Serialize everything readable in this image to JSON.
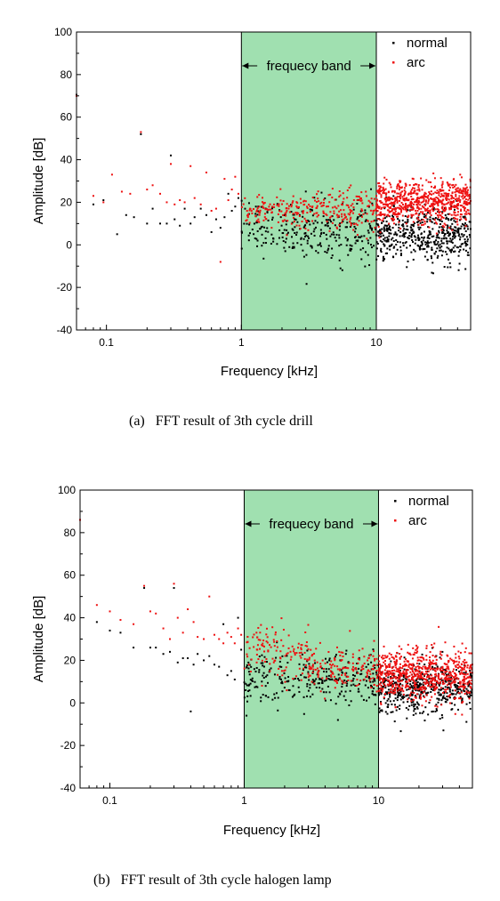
{
  "chart_data": [
    {
      "type": "scatter",
      "caption": "(a)   FFT result of 3th cycle drill",
      "xlabel": "Frequency  [kHz]",
      "ylabel": "Amplitude [dB]",
      "xscale": "log",
      "xlim": [
        0.06,
        50
      ],
      "ylim": [
        -40,
        100
      ],
      "xticks": [
        "0.1",
        "1",
        "10"
      ],
      "yticks": [
        "-40",
        "-20",
        "0",
        "20",
        "40",
        "60",
        "80",
        "100"
      ],
      "band": {
        "label": "frequecy band",
        "range": [
          1,
          10
        ],
        "color": "#a0e0b0"
      },
      "legend_position": "top-right",
      "series": [
        {
          "name": "normal",
          "color": "#000000",
          "points": [
            [
              0.06,
              70.5
            ],
            [
              0.08,
              19
            ],
            [
              0.095,
              21
            ],
            [
              0.12,
              5
            ],
            [
              0.14,
              14
            ],
            [
              0.16,
              13
            ],
            [
              0.18,
              52
            ],
            [
              0.2,
              10
            ],
            [
              0.22,
              17
            ],
            [
              0.25,
              10
            ],
            [
              0.28,
              10
            ],
            [
              0.3,
              42
            ],
            [
              0.32,
              12
            ],
            [
              0.35,
              9
            ],
            [
              0.38,
              17
            ],
            [
              0.42,
              10
            ],
            [
              0.45,
              13
            ],
            [
              0.5,
              17
            ],
            [
              0.55,
              14
            ],
            [
              0.6,
              6
            ],
            [
              0.65,
              12
            ],
            [
              0.7,
              8
            ],
            [
              0.75,
              13
            ],
            [
              0.8,
              24
            ],
            [
              0.85,
              16
            ],
            [
              0.9,
              18
            ],
            [
              0.95,
              22
            ]
          ],
          "dense": [
            {
              "x": [
                1,
                3
              ],
              "mean": 8,
              "sd": 6,
              "n": 120
            },
            {
              "x": [
                3,
                10
              ],
              "mean": 6,
              "sd": 7,
              "n": 160
            },
            {
              "x": [
                10,
                50
              ],
              "mean": 4,
              "sd": 6,
              "n": 500
            }
          ]
        },
        {
          "name": "arc",
          "color": "#ee1111",
          "points": [
            [
              0.06,
              70
            ],
            [
              0.08,
              23
            ],
            [
              0.095,
              20
            ],
            [
              0.11,
              33
            ],
            [
              0.13,
              25
            ],
            [
              0.15,
              24
            ],
            [
              0.18,
              53
            ],
            [
              0.2,
              26
            ],
            [
              0.22,
              28
            ],
            [
              0.25,
              24
            ],
            [
              0.28,
              20
            ],
            [
              0.3,
              38
            ],
            [
              0.32,
              19
            ],
            [
              0.35,
              21
            ],
            [
              0.38,
              20
            ],
            [
              0.42,
              37
            ],
            [
              0.45,
              22
            ],
            [
              0.5,
              19
            ],
            [
              0.55,
              34
            ],
            [
              0.6,
              16
            ],
            [
              0.65,
              17
            ],
            [
              0.7,
              -8
            ],
            [
              0.75,
              31
            ],
            [
              0.8,
              21
            ],
            [
              0.85,
              26
            ],
            [
              0.9,
              32
            ],
            [
              0.95,
              24
            ]
          ],
          "dense": [
            {
              "x": [
                1,
                3
              ],
              "mean": 16,
              "sd": 4,
              "n": 120
            },
            {
              "x": [
                3,
                10
              ],
              "mean": 16,
              "sd": 5,
              "n": 160
            },
            {
              "x": [
                10,
                50
              ],
              "mean": 20,
              "sd": 5,
              "n": 700
            }
          ]
        }
      ]
    },
    {
      "type": "scatter",
      "caption": "(b)   FFT result of 3th cycle halogen lamp",
      "xlabel": "Frequency  [kHz]",
      "ylabel": "Amplitude [dB]",
      "xscale": "log",
      "xlim": [
        0.06,
        50
      ],
      "ylim": [
        -40,
        100
      ],
      "xticks": [
        "0.1",
        "1",
        "10"
      ],
      "yticks": [
        "-40",
        "-20",
        "0",
        "20",
        "40",
        "60",
        "80",
        "100"
      ],
      "band": {
        "label": "frequecy band",
        "range": [
          1,
          10
        ],
        "color": "#a0e0b0"
      },
      "legend_position": "top-right",
      "series": [
        {
          "name": "normal",
          "color": "#000000",
          "points": [
            [
              0.06,
              86
            ],
            [
              0.08,
              38
            ],
            [
              0.1,
              34
            ],
            [
              0.12,
              33
            ],
            [
              0.15,
              26
            ],
            [
              0.18,
              54
            ],
            [
              0.2,
              26
            ],
            [
              0.22,
              26
            ],
            [
              0.25,
              23
            ],
            [
              0.28,
              24
            ],
            [
              0.3,
              54
            ],
            [
              0.32,
              19
            ],
            [
              0.35,
              21
            ],
            [
              0.38,
              21
            ],
            [
              0.4,
              -4
            ],
            [
              0.42,
              18
            ],
            [
              0.45,
              23
            ],
            [
              0.5,
              20
            ],
            [
              0.55,
              22
            ],
            [
              0.6,
              18
            ],
            [
              0.65,
              17
            ],
            [
              0.7,
              37
            ],
            [
              0.75,
              13
            ],
            [
              0.8,
              15
            ],
            [
              0.85,
              11
            ],
            [
              0.9,
              40
            ],
            [
              0.95,
              25
            ]
          ],
          "dense": [
            {
              "x": [
                1,
                3
              ],
              "mean": 11,
              "sd": 7,
              "n": 120
            },
            {
              "x": [
                3,
                10
              ],
              "mean": 10,
              "sd": 6,
              "n": 160
            },
            {
              "x": [
                10,
                50
              ],
              "mean": 7,
              "sd": 6,
              "n": 500
            }
          ]
        },
        {
          "name": "arc",
          "color": "#ee1111",
          "points": [
            [
              0.06,
              86
            ],
            [
              0.08,
              46
            ],
            [
              0.1,
              43
            ],
            [
              0.12,
              39
            ],
            [
              0.15,
              37
            ],
            [
              0.18,
              55
            ],
            [
              0.2,
              43
            ],
            [
              0.22,
              42
            ],
            [
              0.25,
              35
            ],
            [
              0.28,
              30
            ],
            [
              0.3,
              56
            ],
            [
              0.32,
              40
            ],
            [
              0.35,
              33
            ],
            [
              0.38,
              44
            ],
            [
              0.42,
              38
            ],
            [
              0.45,
              31
            ],
            [
              0.5,
              30
            ],
            [
              0.55,
              50
            ],
            [
              0.6,
              32
            ],
            [
              0.65,
              30
            ],
            [
              0.7,
              28
            ],
            [
              0.75,
              33
            ],
            [
              0.8,
              31
            ],
            [
              0.85,
              28
            ],
            [
              0.9,
              35
            ],
            [
              0.95,
              32
            ]
          ],
          "dense": [
            {
              "x": [
                1,
                3
              ],
              "mean": 24,
              "sd": 6,
              "n": 120
            },
            {
              "x": [
                3,
                10
              ],
              "mean": 16,
              "sd": 5,
              "n": 160
            },
            {
              "x": [
                10,
                50
              ],
              "mean": 13,
              "sd": 6,
              "n": 700
            }
          ]
        }
      ]
    }
  ]
}
